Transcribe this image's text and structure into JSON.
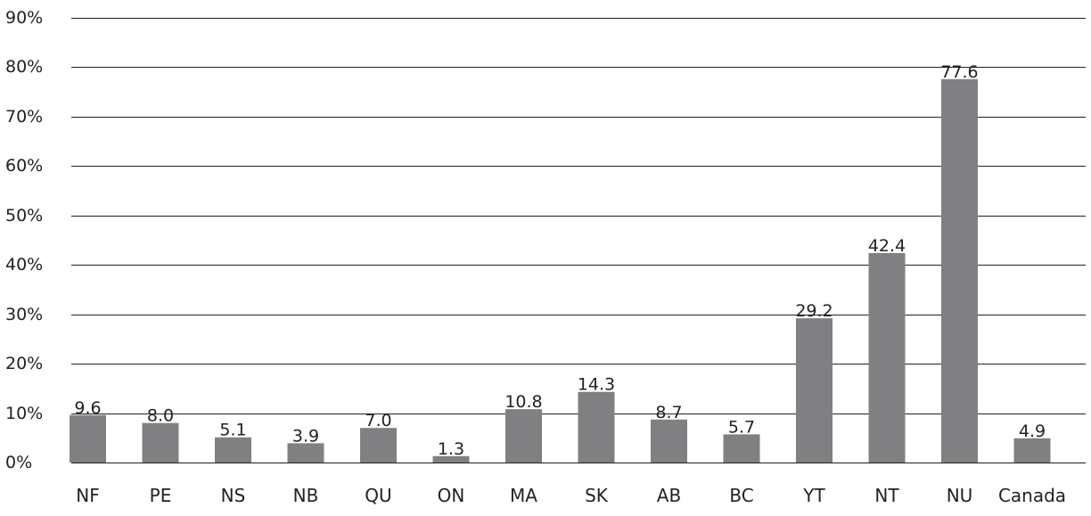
{
  "chart_data": {
    "type": "bar",
    "categories": [
      "NF",
      "PE",
      "NS",
      "NB",
      "QU",
      "ON",
      "MA",
      "SK",
      "AB",
      "BC",
      "YT",
      "NT",
      "NU",
      "Canada"
    ],
    "values": [
      9.6,
      8.0,
      5.1,
      3.9,
      7.0,
      1.3,
      10.8,
      14.3,
      8.7,
      5.7,
      29.2,
      42.4,
      77.6,
      4.9
    ],
    "data_labels": [
      "9.6",
      "8.0",
      "5.1",
      "3.9",
      "7.0",
      "1.3",
      "10.8",
      "14.3",
      "8.7",
      "5.7",
      "29.2",
      "42.4",
      "77.6",
      "4.9"
    ],
    "y_ticks": [
      0,
      10,
      20,
      30,
      40,
      50,
      60,
      70,
      80,
      90
    ],
    "y_tick_labels": [
      "0%",
      "10%",
      "20%",
      "30%",
      "40%",
      "50%",
      "60%",
      "70%",
      "80%",
      "90%"
    ],
    "ylim": [
      0,
      90
    ],
    "title": "",
    "xlabel": "",
    "ylabel": "",
    "grid": true,
    "legend": "none",
    "colors": {
      "bar": "#808083",
      "grid": "#222222",
      "text": "#222222"
    }
  }
}
